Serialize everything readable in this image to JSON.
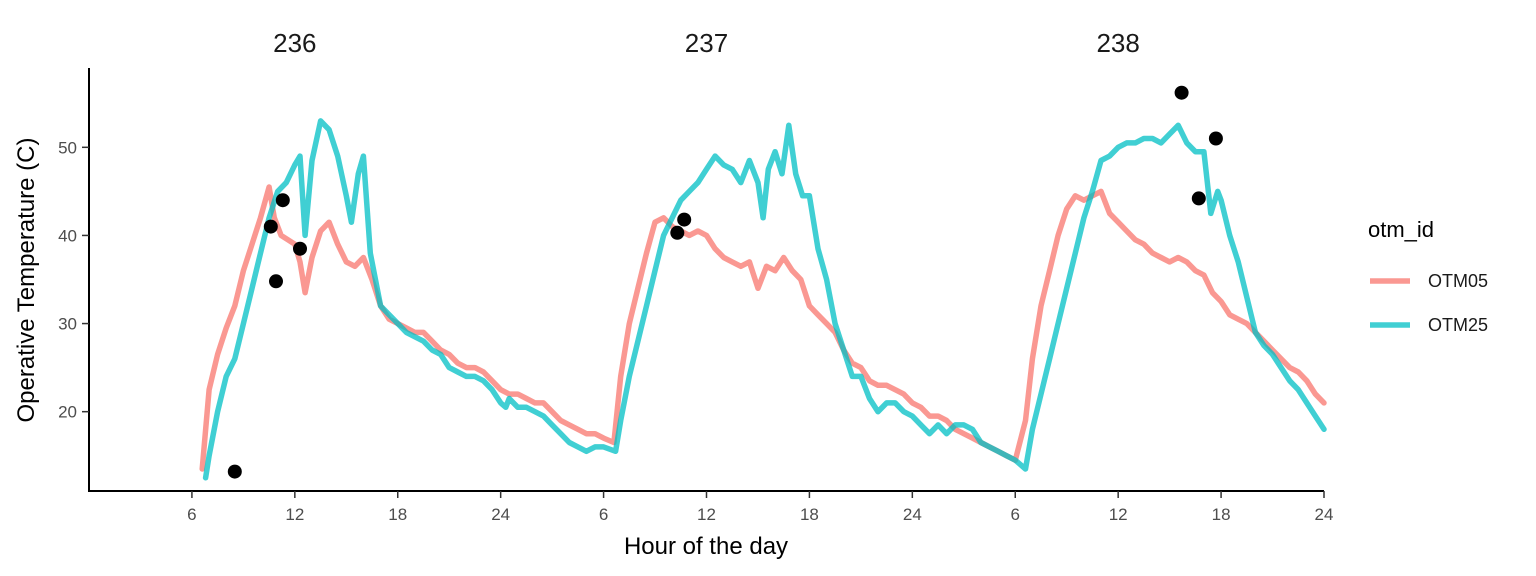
{
  "chart_data": {
    "type": "line",
    "xlabel": "Hour of the day",
    "ylabel": "Operative Temperature (C)",
    "x_range": [
      0,
      72
    ],
    "ylim": [
      11,
      59
    ],
    "x_ticks": [
      {
        "value": 6,
        "label": "6"
      },
      {
        "value": 12,
        "label": "12"
      },
      {
        "value": 18,
        "label": "18"
      },
      {
        "value": 24,
        "label": "24"
      },
      {
        "value": 30,
        "label": "6"
      },
      {
        "value": 36,
        "label": "12"
      },
      {
        "value": 42,
        "label": "18"
      },
      {
        "value": 48,
        "label": "24"
      },
      {
        "value": 54,
        "label": "6"
      },
      {
        "value": 60,
        "label": "12"
      },
      {
        "value": 66,
        "label": "18"
      },
      {
        "value": 72,
        "label": "24"
      }
    ],
    "y_ticks": [
      20,
      30,
      40,
      50
    ],
    "facets": [
      {
        "label": "236",
        "center_x": 12
      },
      {
        "label": "237",
        "center_x": 36
      },
      {
        "label": "238",
        "center_x": 60
      }
    ],
    "legend": {
      "title": "otm_id",
      "position": "right"
    },
    "grid": false,
    "series": [
      {
        "name": "OTM05",
        "color": "#F8766D",
        "points": [
          [
            6.6,
            13.5
          ],
          [
            7.0,
            22.5
          ],
          [
            7.5,
            26.5
          ],
          [
            8.0,
            29.5
          ],
          [
            8.5,
            32
          ],
          [
            9.0,
            36
          ],
          [
            9.5,
            39
          ],
          [
            10.0,
            42
          ],
          [
            10.5,
            45.5
          ],
          [
            10.8,
            42
          ],
          [
            11.2,
            40
          ],
          [
            11.6,
            39.5
          ],
          [
            12.0,
            39
          ],
          [
            12.3,
            37
          ],
          [
            12.6,
            33.5
          ],
          [
            13.0,
            37.5
          ],
          [
            13.5,
            40.5
          ],
          [
            14.0,
            41.5
          ],
          [
            14.5,
            39
          ],
          [
            15.0,
            37
          ],
          [
            15.5,
            36.5
          ],
          [
            16.0,
            37.5
          ],
          [
            16.5,
            35
          ],
          [
            17.0,
            32
          ],
          [
            17.5,
            30.5
          ],
          [
            18.0,
            30
          ],
          [
            18.5,
            29.5
          ],
          [
            19.0,
            29
          ],
          [
            19.5,
            29
          ],
          [
            20.0,
            28
          ],
          [
            20.5,
            27
          ],
          [
            21.0,
            26.5
          ],
          [
            21.5,
            25.5
          ],
          [
            22.0,
            25
          ],
          [
            22.5,
            25
          ],
          [
            23.0,
            24.5
          ],
          [
            23.5,
            23.5
          ],
          [
            24.0,
            22.5
          ],
          [
            24.5,
            22
          ],
          [
            25.0,
            22
          ],
          [
            25.5,
            21.5
          ],
          [
            26.0,
            21
          ],
          [
            26.5,
            21
          ],
          [
            27.0,
            20
          ],
          [
            27.5,
            19
          ],
          [
            28.0,
            18.5
          ],
          [
            28.5,
            18
          ],
          [
            29.0,
            17.5
          ],
          [
            29.5,
            17.5
          ],
          [
            30.0,
            17
          ],
          [
            30.6,
            16.5
          ],
          [
            31.0,
            24
          ],
          [
            31.5,
            30
          ],
          [
            32.0,
            34
          ],
          [
            32.5,
            38
          ],
          [
            33.0,
            41.5
          ],
          [
            33.5,
            42
          ],
          [
            34.0,
            41
          ],
          [
            34.5,
            40.5
          ],
          [
            35.0,
            40
          ],
          [
            35.5,
            40.5
          ],
          [
            36.0,
            40
          ],
          [
            36.5,
            38.5
          ],
          [
            37.0,
            37.5
          ],
          [
            37.5,
            37
          ],
          [
            38.0,
            36.5
          ],
          [
            38.5,
            37
          ],
          [
            39.0,
            34
          ],
          [
            39.5,
            36.5
          ],
          [
            40.0,
            36
          ],
          [
            40.5,
            37.5
          ],
          [
            41.0,
            36
          ],
          [
            41.5,
            35
          ],
          [
            42.0,
            32
          ],
          [
            42.5,
            31
          ],
          [
            43.0,
            30
          ],
          [
            43.5,
            29
          ],
          [
            44.0,
            27
          ],
          [
            44.5,
            25.5
          ],
          [
            45.0,
            25
          ],
          [
            45.5,
            23.5
          ],
          [
            46.0,
            23
          ],
          [
            46.5,
            23
          ],
          [
            47.0,
            22.5
          ],
          [
            47.5,
            22
          ],
          [
            48.0,
            21
          ],
          [
            48.5,
            20.5
          ],
          [
            49.0,
            19.5
          ],
          [
            49.5,
            19.5
          ],
          [
            50.0,
            19
          ],
          [
            50.5,
            18
          ],
          [
            51.0,
            17.5
          ],
          [
            51.5,
            17
          ],
          [
            52.0,
            16.5
          ],
          [
            52.5,
            16
          ],
          [
            53.0,
            15.5
          ],
          [
            53.5,
            15
          ],
          [
            54.0,
            14.5
          ],
          [
            54.6,
            19
          ],
          [
            55.0,
            26
          ],
          [
            55.5,
            32
          ],
          [
            56.0,
            36
          ],
          [
            56.5,
            40
          ],
          [
            57.0,
            43
          ],
          [
            57.5,
            44.5
          ],
          [
            58.0,
            44
          ],
          [
            58.5,
            44.5
          ],
          [
            59.0,
            45
          ],
          [
            59.5,
            42.5
          ],
          [
            60.0,
            41.5
          ],
          [
            60.5,
            40.5
          ],
          [
            61.0,
            39.5
          ],
          [
            61.5,
            39
          ],
          [
            62.0,
            38
          ],
          [
            62.5,
            37.5
          ],
          [
            63.0,
            37
          ],
          [
            63.5,
            37.5
          ],
          [
            64.0,
            37
          ],
          [
            64.5,
            36
          ],
          [
            65.0,
            35.5
          ],
          [
            65.5,
            33.5
          ],
          [
            66.0,
            32.5
          ],
          [
            66.5,
            31
          ],
          [
            67.0,
            30.5
          ],
          [
            67.5,
            30
          ],
          [
            68.0,
            29
          ],
          [
            68.5,
            28
          ],
          [
            69.0,
            27
          ],
          [
            69.5,
            26
          ],
          [
            70.0,
            25
          ],
          [
            70.5,
            24.5
          ],
          [
            71.0,
            23.5
          ],
          [
            71.5,
            22
          ],
          [
            72.0,
            21
          ]
        ]
      },
      {
        "name": "OTM25",
        "color": "#00BFC4",
        "points": [
          [
            6.8,
            12.5
          ],
          [
            7.0,
            15
          ],
          [
            7.5,
            20
          ],
          [
            8.0,
            24
          ],
          [
            8.5,
            26
          ],
          [
            9.0,
            30
          ],
          [
            9.5,
            34
          ],
          [
            10.0,
            38
          ],
          [
            10.5,
            42
          ],
          [
            11.0,
            45
          ],
          [
            11.5,
            46
          ],
          [
            12.0,
            48
          ],
          [
            12.3,
            49
          ],
          [
            12.6,
            40
          ],
          [
            13.0,
            48.5
          ],
          [
            13.5,
            53
          ],
          [
            14.0,
            52
          ],
          [
            14.5,
            49
          ],
          [
            15.0,
            44.5
          ],
          [
            15.3,
            41.5
          ],
          [
            15.7,
            47
          ],
          [
            16.0,
            49
          ],
          [
            16.4,
            38
          ],
          [
            17.0,
            32
          ],
          [
            17.5,
            31
          ],
          [
            18.0,
            30
          ],
          [
            18.5,
            29
          ],
          [
            19.0,
            28.5
          ],
          [
            19.5,
            28
          ],
          [
            20.0,
            27
          ],
          [
            20.5,
            26.5
          ],
          [
            21.0,
            25
          ],
          [
            21.5,
            24.5
          ],
          [
            22.0,
            24
          ],
          [
            22.5,
            24
          ],
          [
            23.0,
            23.5
          ],
          [
            23.5,
            22.5
          ],
          [
            24.0,
            21
          ],
          [
            24.3,
            20.5
          ],
          [
            24.5,
            21.5
          ],
          [
            25.0,
            20.5
          ],
          [
            25.5,
            20.5
          ],
          [
            26.0,
            20
          ],
          [
            26.5,
            19.5
          ],
          [
            27.0,
            18.5
          ],
          [
            27.5,
            17.5
          ],
          [
            28.0,
            16.5
          ],
          [
            28.5,
            16
          ],
          [
            29.0,
            15.5
          ],
          [
            29.5,
            16
          ],
          [
            30.0,
            16
          ],
          [
            30.7,
            15.5
          ],
          [
            31.0,
            19
          ],
          [
            31.5,
            24
          ],
          [
            32.0,
            28
          ],
          [
            32.5,
            32
          ],
          [
            33.0,
            36
          ],
          [
            33.5,
            40
          ],
          [
            34.0,
            42
          ],
          [
            34.5,
            44
          ],
          [
            35.0,
            45
          ],
          [
            35.5,
            46
          ],
          [
            36.0,
            47.5
          ],
          [
            36.5,
            49
          ],
          [
            37.0,
            48
          ],
          [
            37.5,
            47.5
          ],
          [
            38.0,
            46
          ],
          [
            38.5,
            48.5
          ],
          [
            39.0,
            46
          ],
          [
            39.3,
            42
          ],
          [
            39.6,
            47.5
          ],
          [
            40.0,
            49.5
          ],
          [
            40.4,
            47
          ],
          [
            40.8,
            52.5
          ],
          [
            41.2,
            47
          ],
          [
            41.6,
            44.5
          ],
          [
            42.0,
            44.5
          ],
          [
            42.5,
            38.5
          ],
          [
            43.0,
            35
          ],
          [
            43.5,
            30
          ],
          [
            44.0,
            27
          ],
          [
            44.5,
            24
          ],
          [
            45.0,
            24
          ],
          [
            45.5,
            21.5
          ],
          [
            46.0,
            20
          ],
          [
            46.5,
            21
          ],
          [
            47.0,
            21
          ],
          [
            47.5,
            20
          ],
          [
            48.0,
            19.5
          ],
          [
            48.5,
            18.5
          ],
          [
            49.0,
            17.5
          ],
          [
            49.5,
            18.5
          ],
          [
            50.0,
            17.5
          ],
          [
            50.5,
            18.5
          ],
          [
            51.0,
            18.5
          ],
          [
            51.5,
            18
          ],
          [
            52.0,
            16.5
          ],
          [
            52.5,
            16
          ],
          [
            53.0,
            15.5
          ],
          [
            53.5,
            15
          ],
          [
            54.0,
            14.5
          ],
          [
            54.6,
            13.5
          ],
          [
            55.0,
            18
          ],
          [
            55.5,
            22
          ],
          [
            56.0,
            26
          ],
          [
            56.5,
            30
          ],
          [
            57.0,
            34
          ],
          [
            57.5,
            38
          ],
          [
            58.0,
            42
          ],
          [
            58.5,
            45
          ],
          [
            59.0,
            48.5
          ],
          [
            59.5,
            49
          ],
          [
            60.0,
            50
          ],
          [
            60.5,
            50.5
          ],
          [
            61.0,
            50.5
          ],
          [
            61.5,
            51
          ],
          [
            62.0,
            51
          ],
          [
            62.5,
            50.5
          ],
          [
            63.0,
            51.5
          ],
          [
            63.5,
            52.5
          ],
          [
            64.0,
            50.5
          ],
          [
            64.5,
            49.5
          ],
          [
            65.0,
            49.5
          ],
          [
            65.4,
            42.5
          ],
          [
            65.8,
            45
          ],
          [
            66.0,
            44
          ],
          [
            66.5,
            40
          ],
          [
            67.0,
            37
          ],
          [
            67.5,
            33
          ],
          [
            68.0,
            29
          ],
          [
            68.5,
            27.5
          ],
          [
            69.0,
            26.5
          ],
          [
            69.5,
            25
          ],
          [
            70.0,
            23.5
          ],
          [
            70.5,
            22.5
          ],
          [
            71.0,
            21
          ],
          [
            71.5,
            19.5
          ],
          [
            72.0,
            18
          ]
        ]
      }
    ],
    "observations": [
      [
        8.5,
        13.2
      ],
      [
        10.6,
        41
      ],
      [
        10.9,
        34.8
      ],
      [
        11.3,
        44
      ],
      [
        12.3,
        38.5
      ],
      [
        34.3,
        40.3
      ],
      [
        34.7,
        41.8
      ],
      [
        63.7,
        56.2
      ],
      [
        64.7,
        44.2
      ],
      [
        65.7,
        51
      ]
    ]
  }
}
